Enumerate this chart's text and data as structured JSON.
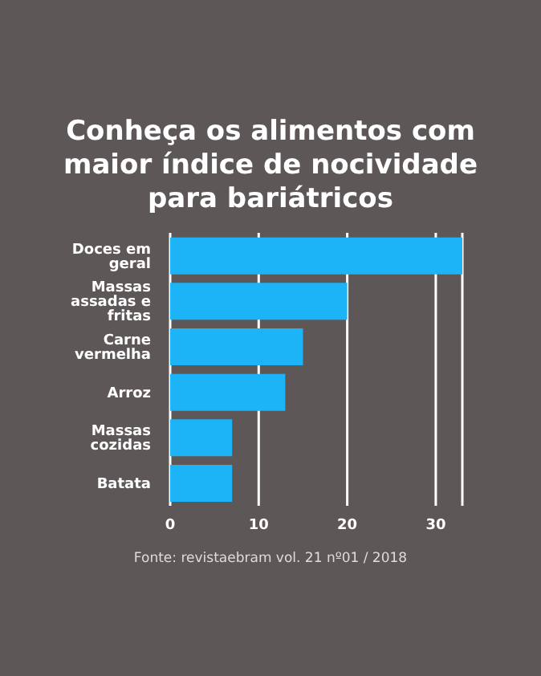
{
  "chart_data": {
    "type": "bar",
    "orientation": "horizontal",
    "title": "Conheça os alimentos com maior índice de nocividade para bariátricos",
    "categories": [
      "Doces em geral",
      "Massas assadas e fritas",
      "Carne vermelha",
      "Arroz",
      "Massas cozidas",
      "Batata"
    ],
    "values": [
      33,
      20,
      15,
      13,
      7,
      7
    ],
    "color": "#1cb3f7",
    "xlim": [
      0,
      33
    ],
    "xticks": [
      0,
      10,
      20,
      30
    ],
    "grid": "x",
    "annotations": [
      "Fonte: revistaebram vol. 21 nº01 / 2018"
    ]
  }
}
